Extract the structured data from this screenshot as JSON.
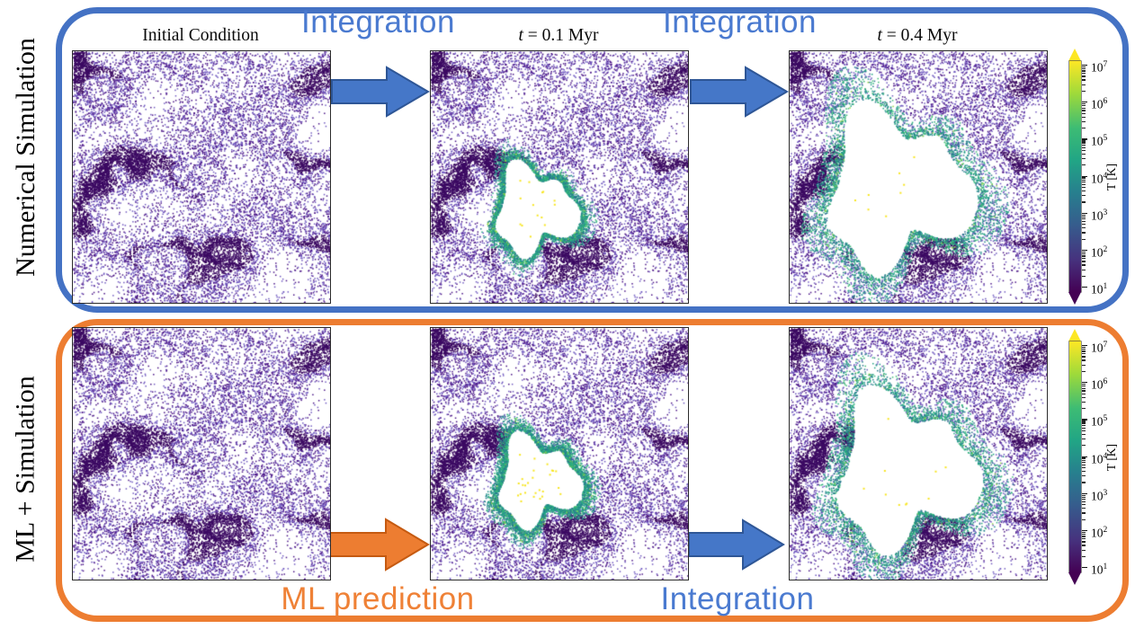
{
  "rows": [
    {
      "side_label": "Numerical Simulation",
      "box_color": "#4472C4"
    },
    {
      "side_label": "ML + Simulation",
      "box_color": "#ED7D31"
    }
  ],
  "titles": [
    {
      "italic": "",
      "rest": "Initial Condition"
    },
    {
      "italic": "t",
      "rest": " = 0.1 Myr"
    },
    {
      "italic": "t",
      "rest": " = 0.4 Myr"
    }
  ],
  "flow_labels": {
    "top": [
      {
        "text": "Integration"
      },
      {
        "text": "Integration"
      }
    ],
    "bottom": [
      {
        "text": "ML prediction"
      },
      {
        "text": "Integration"
      }
    ]
  },
  "colorbar": {
    "label": "T [K]",
    "tick_exponents": [
      "7",
      "6",
      "5",
      "4",
      "3",
      "2",
      "1"
    ],
    "scale": "log",
    "colormap": "viridis",
    "extend": "both"
  },
  "colors": {
    "box_blue": "#4472C4",
    "box_orange": "#ED7D31",
    "arrow_blue_fill": "#4577C8",
    "arrow_blue_stroke": "#2E5696",
    "arrow_orange_fill": "#ED7D31",
    "arrow_orange_stroke": "#C55A11",
    "label_blue": "#4A7AD0",
    "label_orange": "#EF8136"
  },
  "chart_data": {
    "type": "scatter",
    "description": "Six particle-distribution panels (temperature-colored gas particles, viridis colormap, log T from 10^1 to 10^7 K). Top row: numerical simulation at Initial Condition, t=0.1 Myr, t=0.4 Myr with a hot supernova bubble growing. Bottom row: same initial condition, bubble produced by ML prediction then integrated.",
    "colorbar": {
      "label": "T [K]",
      "scale": "log",
      "min_exp": 1,
      "max_exp": 7,
      "colormap": "viridis"
    },
    "palette": {
      "cold_dark": "#3c0a63",
      "cold_mid": "#4c1688",
      "cold_light": "#7059c0",
      "ring": [
        "#20a386",
        "#27808e",
        "#2db27d",
        "#2c718e",
        "#21918c",
        "#3dbc74"
      ],
      "hot": "#f8e621",
      "hot_green": "#8ed645"
    },
    "render": {
      "seed": 20240,
      "cloud_samples": 110000,
      "noise_scale": 3.1,
      "point_size": 1.5
    },
    "panels": [
      {
        "id": "num-ic",
        "row": "numerical",
        "title": "Initial Condition",
        "time_myr": null,
        "salt": 1,
        "bubble": null
      },
      {
        "id": "num-t01",
        "row": "numerical",
        "title": "t = 0.1 Myr",
        "time_myr": 0.1,
        "salt": 2,
        "bubble": {
          "cx": 0.4,
          "cy": 0.63,
          "r": 0.165,
          "ring_points": 2600,
          "ring_spread": 0.07,
          "hot_core_points": 14
        }
      },
      {
        "id": "num-t04",
        "row": "numerical",
        "title": "t = 0.4 Myr",
        "time_myr": 0.4,
        "salt": 3,
        "bubble": {
          "cx": 0.41,
          "cy": 0.55,
          "r": 0.29,
          "ring_points": 1900,
          "ring_spread": 0.1,
          "hot_core_points": 8
        }
      },
      {
        "id": "ml-ic",
        "row": "ml",
        "title": "",
        "time_myr": null,
        "salt": 4,
        "bubble": null
      },
      {
        "id": "ml-t01",
        "row": "ml",
        "title": "",
        "time_myr": 0.1,
        "salt": 5,
        "bubble": {
          "cx": 0.41,
          "cy": 0.61,
          "r": 0.165,
          "ring_points": 3400,
          "ring_spread": 0.12,
          "hot_core_points": 26
        }
      },
      {
        "id": "ml-t04",
        "row": "ml",
        "title": "",
        "time_myr": 0.4,
        "salt": 6,
        "bubble": {
          "cx": 0.44,
          "cy": 0.57,
          "r": 0.28,
          "ring_points": 2100,
          "ring_spread": 0.1,
          "hot_core_points": 10
        }
      }
    ]
  }
}
